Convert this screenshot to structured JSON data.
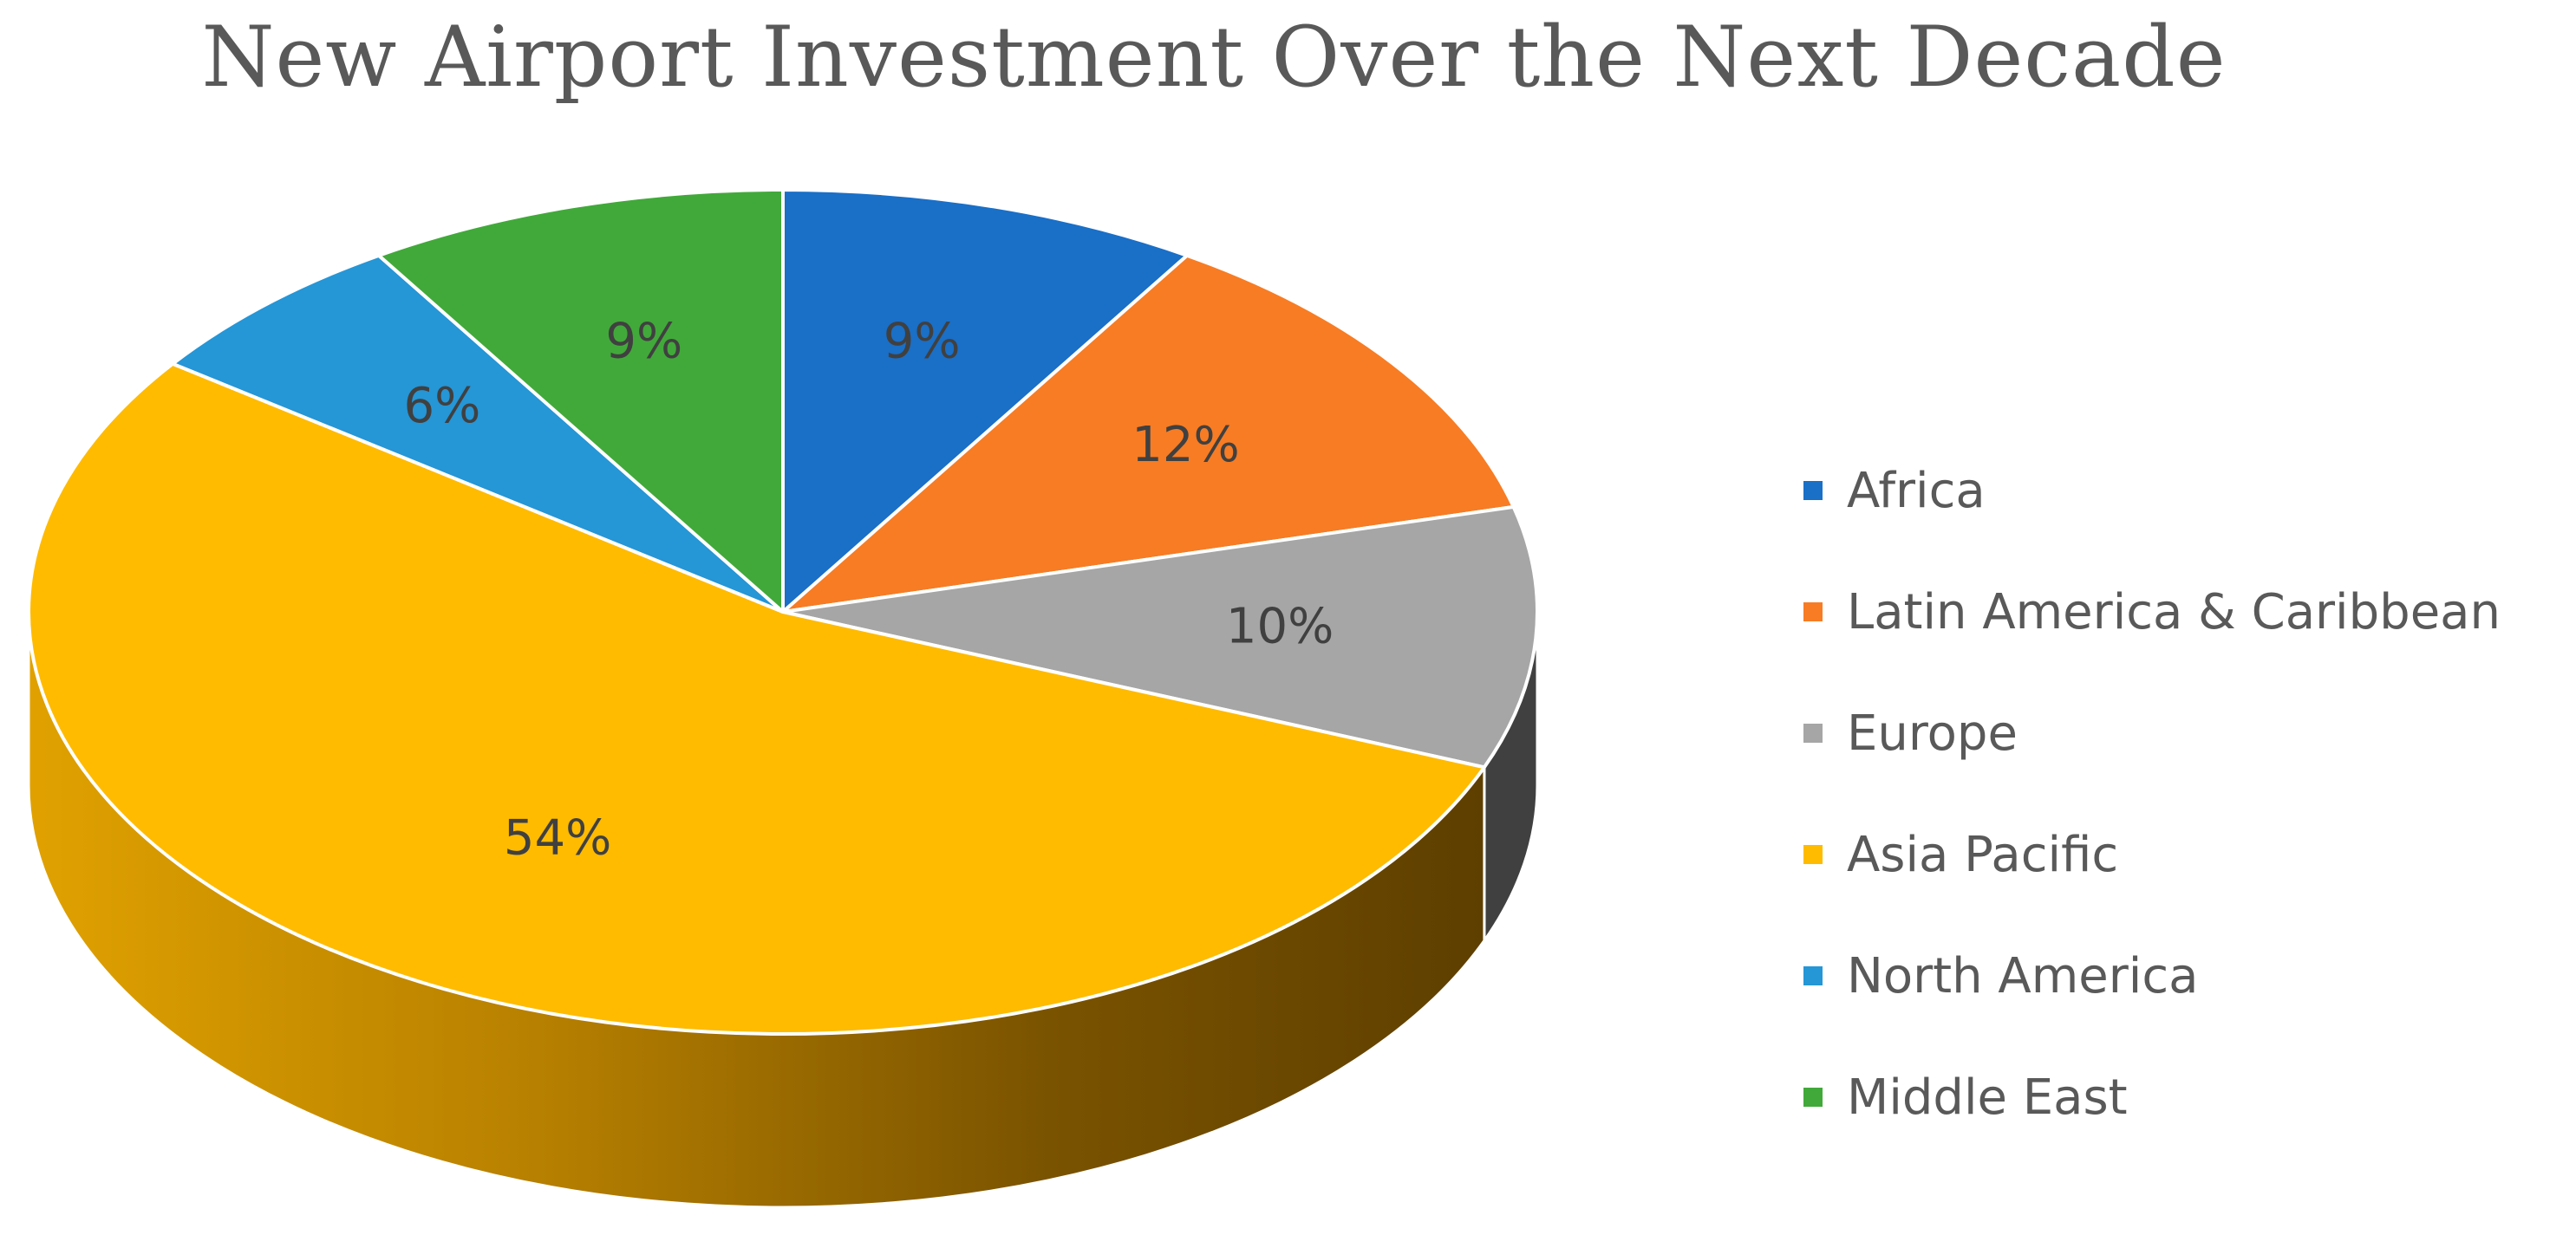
{
  "chart_data": {
    "type": "pie",
    "title": "New Airport Investment Over the Next Decade",
    "categories": [
      "Africa",
      "Latin America & Caribbean",
      "Europe",
      "Asia Pacific",
      "North America",
      "Middle East"
    ],
    "values": [
      9,
      12,
      10,
      54,
      6,
      9
    ],
    "data_labels": [
      "9%",
      "12%",
      "10%",
      "54%",
      "6%",
      "9%"
    ],
    "colors": [
      "#1A6FC7",
      "#F77C24",
      "#A6A6A6",
      "#FFBB00",
      "#2596D6",
      "#41A93A"
    ],
    "style": "3d",
    "legend_position": "right"
  }
}
